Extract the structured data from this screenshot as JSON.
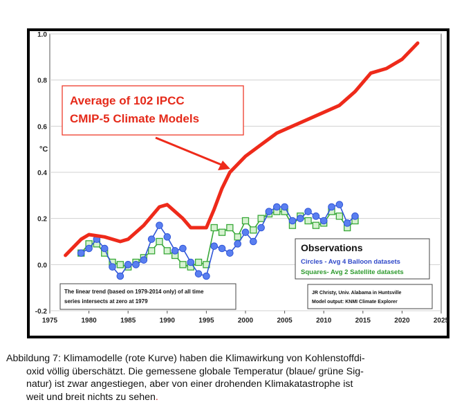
{
  "chart_data": {
    "type": "line",
    "ylabel": "°C",
    "xlim": [
      1975,
      2025
    ],
    "ylim": [
      -0.2,
      1.0
    ],
    "x_ticks": [
      "1975",
      "1980",
      "1985",
      "1990",
      "1995",
      "2000",
      "2005",
      "2010",
      "2015",
      "2020",
      "2025"
    ],
    "y_ticks": [
      "1.0",
      "0.8",
      "0.6",
      "0.4",
      "0.2",
      "0.0",
      "-0.2"
    ],
    "grid": true,
    "series": [
      {
        "name": "Average of 102 IPCC CMIP-5 Climate Models",
        "color": "#ee2a1a",
        "x": [
          1977,
          1979,
          1980,
          1982,
          1984,
          1985,
          1987,
          1989,
          1990,
          1992,
          1993,
          1995,
          1996,
          1997,
          1998,
          2000,
          2002,
          2004,
          2006,
          2008,
          2010,
          2012,
          2014,
          2016,
          2018,
          2020,
          2022
        ],
        "values": [
          0.04,
          0.11,
          0.13,
          0.12,
          0.1,
          0.11,
          0.17,
          0.25,
          0.26,
          0.2,
          0.16,
          0.16,
          0.24,
          0.33,
          0.4,
          0.47,
          0.52,
          0.57,
          0.6,
          0.63,
          0.66,
          0.69,
          0.75,
          0.83,
          0.85,
          0.89,
          0.96
        ]
      },
      {
        "name": "Circles - Avg 4 Balloon datasets",
        "color": "#2f55d8",
        "x": [
          1979,
          1980,
          1981,
          1982,
          1983,
          1984,
          1985,
          1986,
          1987,
          1988,
          1989,
          1990,
          1991,
          1992,
          1993,
          1994,
          1995,
          1996,
          1997,
          1998,
          1999,
          2000,
          2001,
          2002,
          2003,
          2004,
          2005,
          2006,
          2007,
          2008,
          2009,
          2010,
          2011,
          2012,
          2013,
          2014
        ],
        "values": [
          0.05,
          0.07,
          0.11,
          0.07,
          -0.01,
          -0.05,
          0.0,
          0.0,
          0.02,
          0.11,
          0.17,
          0.12,
          0.06,
          0.07,
          0.01,
          -0.04,
          -0.05,
          0.08,
          0.07,
          0.05,
          0.09,
          0.14,
          0.1,
          0.16,
          0.23,
          0.25,
          0.25,
          0.19,
          0.2,
          0.23,
          0.21,
          0.19,
          0.25,
          0.26,
          0.18,
          0.21
        ]
      },
      {
        "name": "Squares- Avg 2 Satellite datasets",
        "color": "#38a838",
        "x": [
          1979,
          1980,
          1981,
          1982,
          1983,
          1984,
          1985,
          1986,
          1987,
          1988,
          1989,
          1990,
          1991,
          1992,
          1993,
          1994,
          1995,
          1996,
          1997,
          1998,
          1999,
          2000,
          2001,
          2002,
          2003,
          2004,
          2005,
          2006,
          2007,
          2008,
          2009,
          2010,
          2011,
          2012,
          2013,
          2014
        ],
        "values": [
          0.05,
          0.09,
          0.09,
          0.05,
          0.01,
          0.0,
          -0.01,
          0.01,
          0.03,
          0.06,
          0.1,
          0.06,
          0.04,
          0.0,
          -0.01,
          0.01,
          0.0,
          0.16,
          0.14,
          0.16,
          0.12,
          0.19,
          0.15,
          0.2,
          0.22,
          0.23,
          0.23,
          0.17,
          0.21,
          0.19,
          0.17,
          0.18,
          0.23,
          0.21,
          0.16,
          0.19
        ]
      }
    ],
    "annotations": {
      "models_box": [
        "Average of 102 IPCC",
        "CMIP-5 Climate Models"
      ],
      "observations_title": "Observations",
      "observations_circles": "Circles - Avg 4 Balloon datasets",
      "observations_squares": "Squares- Avg 2 Satellite datasets",
      "trend_note": [
        "The linear trend (based on 1979-2014 only) of all time",
        "series intersects at zero at 1979"
      ],
      "credit": [
        "JR Christy, Univ. Alabama in Huntsville",
        "Model output: KNMI Climate Explorer"
      ]
    }
  },
  "caption": {
    "line1": "Abbildung 7: Klimamodelle (rote Kurve) haben die Klimawirkung von Kohlenstoffdi-",
    "line2": "oxid völlig überschätzt. Die gemessene globale Temperatur (blaue/ grüne Sig-",
    "line3": "natur) ist zwar angestiegen, aber von einer drohenden Klimakatastrophe ist",
    "line4": "weit und breit nichts zu sehen",
    "line4_end": "."
  }
}
